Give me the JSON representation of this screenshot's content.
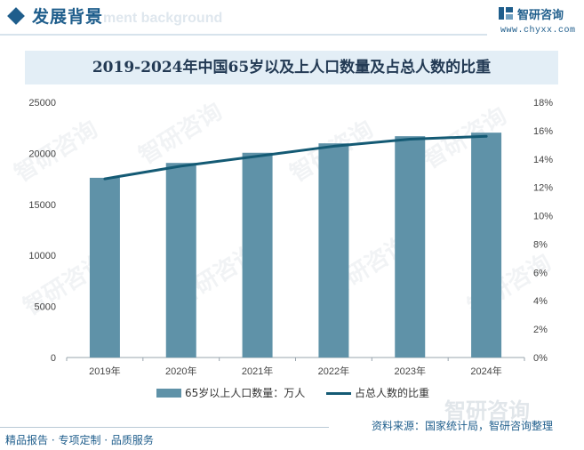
{
  "header": {
    "title": "发展背景",
    "watermark_text": "ment background"
  },
  "brand": {
    "name": "智研咨询",
    "site": "www.chyxx.com",
    "logo_icon": "zhiyan-logo-icon",
    "color": "#1f5e8c"
  },
  "watermark": {
    "text": "智研咨询"
  },
  "legend": {
    "bar_label": "65岁以上人口数量：万人",
    "line_label": "占总人数的比重"
  },
  "source": "资料来源：国家统计局，智研咨询整理",
  "footer": "精品报告 · 专项定制 · 品质服务",
  "colors": {
    "bar": "#5f92a8",
    "line": "#145a74",
    "accent": "#1f5e8c"
  },
  "chart_data": {
    "type": "bar",
    "title": "2019-2024年中国65岁以及上人口数量及占总人数的比重",
    "categories": [
      "2019年",
      "2020年",
      "2021年",
      "2022年",
      "2023年",
      "2024年"
    ],
    "series": [
      {
        "name": "65岁以上人口数量：万人",
        "type": "bar",
        "axis": "left",
        "values": [
          17603,
          19059,
          20056,
          20978,
          21676,
          22023
        ]
      },
      {
        "name": "占总人数的比重",
        "type": "line",
        "axis": "right",
        "values": [
          12.6,
          13.5,
          14.2,
          14.9,
          15.4,
          15.6
        ]
      }
    ],
    "ylim": [
      0,
      25000
    ],
    "yticks": [
      "0",
      "5000",
      "10000",
      "15000",
      "20000",
      "25000"
    ],
    "y2lim": [
      0,
      18
    ],
    "y2ticks": [
      "0%",
      "2%",
      "4%",
      "6%",
      "8%",
      "10%",
      "12%",
      "14%",
      "16%",
      "18%"
    ],
    "grid": false,
    "legend_position": "bottom"
  }
}
